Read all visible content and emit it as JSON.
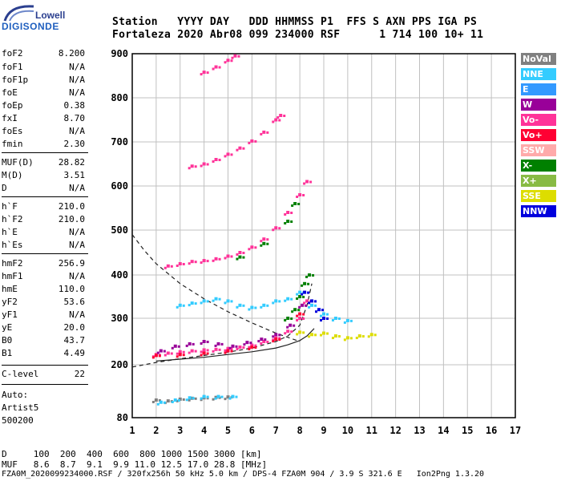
{
  "logo": {
    "line1": "Lowell",
    "line2": "DIGISONDE"
  },
  "header": {
    "row1": "Station   YYYY DAY   DDD HHMMSS P1  FFS S AXN PPS IGA PS",
    "row2": "Fortaleza 2020 Abr08 099 234000 RSF      1 714 100 10+ 11"
  },
  "params": [
    {
      "label": "foF2",
      "value": "8.200"
    },
    {
      "label": "foF1",
      "value": "N/A"
    },
    {
      "label": "foF1p",
      "value": "N/A"
    },
    {
      "label": "foE",
      "value": "N/A"
    },
    {
      "label": "foEp",
      "value": "0.38"
    },
    {
      "label": "fxI",
      "value": "8.70"
    },
    {
      "label": "foEs",
      "value": "N/A"
    },
    {
      "label": "fmin",
      "value": "2.30"
    },
    {
      "label": "MUF(D)",
      "value": "28.82"
    },
    {
      "label": "M(D)",
      "value": "3.51"
    },
    {
      "label": "D",
      "value": "N/A"
    },
    {
      "label": "h`F",
      "value": "210.0"
    },
    {
      "label": "h`F2",
      "value": "210.0"
    },
    {
      "label": "h`E",
      "value": "N/A"
    },
    {
      "label": "h`Es",
      "value": "N/A"
    },
    {
      "label": "hmF2",
      "value": "256.9"
    },
    {
      "label": "hmF1",
      "value": "N/A"
    },
    {
      "label": "hmE",
      "value": "110.0"
    },
    {
      "label": "yF2",
      "value": "53.6"
    },
    {
      "label": "yF1",
      "value": "N/A"
    },
    {
      "label": "yE",
      "value": "20.0"
    },
    {
      "label": "B0",
      "value": "43.7"
    },
    {
      "label": "B1",
      "value": "4.49"
    },
    {
      "label": "C-level",
      "value": "22"
    }
  ],
  "auto": {
    "line1": "Auto:",
    "line2": "Artist5",
    "line3": "500200"
  },
  "legend": [
    {
      "label": "NoVal",
      "color": "#808080"
    },
    {
      "label": "NNE",
      "color": "#33ccff"
    },
    {
      "label": "E",
      "color": "#3399ff"
    },
    {
      "label": "W",
      "color": "#990099"
    },
    {
      "label": "Vo-",
      "color": "#ff3399"
    },
    {
      "label": "Vo+",
      "color": "#ff0033"
    },
    {
      "label": "SSW",
      "color": "#ffaaaa"
    },
    {
      "label": "X-",
      "color": "#008000"
    },
    {
      "label": "X+",
      "color": "#88bb44"
    },
    {
      "label": "SSE",
      "color": "#dddd00"
    },
    {
      "label": "NNW",
      "color": "#0000dd"
    }
  ],
  "bottom": {
    "row1": "D     100  200  400  600  800 1000 1500 3000 [km]",
    "row2": "MUF   8.6  8.7  9.1  9.9 11.0 12.5 17.0 28.8 [MHz]",
    "row3": "FZA0M_2020099234000.RSF / 320fx256h 50 kHz 5.0 km / DPS-4 FZA0M 904 / 3.9 S 321.6 E   Ion2Png 1.3.20"
  },
  "chart_data": {
    "type": "scatter",
    "title": "",
    "xlabel": "",
    "ylabel": "",
    "xlim": [
      1,
      17
    ],
    "ylim": [
      80,
      900
    ],
    "x_ticks": [
      "1",
      "2",
      "3",
      "4",
      "5",
      "6",
      "7",
      "8",
      "9",
      "10",
      "11",
      "12",
      "13",
      "14",
      "15",
      "16",
      "17"
    ],
    "y_ticks": [
      "80",
      "200",
      "300",
      "400",
      "500",
      "600",
      "700",
      "800",
      "900"
    ],
    "series": [
      {
        "color": "#ff3399",
        "points": [
          [
            2.0,
            222
          ],
          [
            2.5,
            225
          ],
          [
            3.0,
            228
          ],
          [
            3.5,
            230
          ],
          [
            4.0,
            232
          ],
          [
            4.5,
            233
          ],
          [
            5.0,
            235
          ],
          [
            5.5,
            238
          ],
          [
            6.0,
            242
          ],
          [
            6.5,
            250
          ],
          [
            7.0,
            258
          ],
          [
            7.5,
            272
          ],
          [
            8.0,
            300
          ],
          [
            8.3,
            340
          ]
        ]
      },
      {
        "color": "#990099",
        "points": [
          [
            2.2,
            230
          ],
          [
            2.8,
            240
          ],
          [
            3.4,
            245
          ],
          [
            4.0,
            250
          ],
          [
            4.6,
            245
          ],
          [
            5.2,
            240
          ],
          [
            5.8,
            248
          ],
          [
            6.4,
            255
          ],
          [
            7.0,
            265
          ],
          [
            7.6,
            285
          ],
          [
            8.1,
            330
          ]
        ]
      },
      {
        "color": "#ff0033",
        "points": [
          [
            2.0,
            220
          ],
          [
            3.0,
            222
          ],
          [
            4.0,
            225
          ],
          [
            5.0,
            230
          ],
          [
            6.0,
            238
          ],
          [
            7.0,
            255
          ],
          [
            8.0,
            310
          ]
        ]
      },
      {
        "color": "#ff3399",
        "points": [
          [
            2.5,
            420
          ],
          [
            3.0,
            425
          ],
          [
            3.5,
            430
          ],
          [
            4.0,
            432
          ],
          [
            4.5,
            436
          ],
          [
            5.0,
            442
          ],
          [
            5.5,
            450
          ],
          [
            6.0,
            462
          ],
          [
            6.5,
            480
          ],
          [
            7.0,
            505
          ],
          [
            7.5,
            540
          ],
          [
            8.0,
            580
          ],
          [
            8.3,
            610
          ]
        ]
      },
      {
        "color": "#ff3399",
        "points": [
          [
            3.5,
            645
          ],
          [
            4.0,
            650
          ],
          [
            4.5,
            660
          ],
          [
            5.0,
            672
          ],
          [
            5.5,
            686
          ],
          [
            6.0,
            702
          ],
          [
            6.5,
            722
          ],
          [
            7.0,
            750
          ],
          [
            7.2,
            760
          ]
        ]
      },
      {
        "color": "#ff3399",
        "points": [
          [
            4.0,
            858
          ],
          [
            4.5,
            870
          ],
          [
            5.0,
            885
          ],
          [
            5.3,
            895
          ]
        ]
      },
      {
        "color": "#33ccff",
        "points": [
          [
            3.0,
            330
          ],
          [
            3.5,
            335
          ],
          [
            4.0,
            340
          ],
          [
            4.5,
            345
          ],
          [
            5.0,
            340
          ],
          [
            5.5,
            330
          ],
          [
            6.0,
            325
          ],
          [
            6.5,
            330
          ],
          [
            7.0,
            340
          ],
          [
            7.5,
            345
          ],
          [
            8.0,
            360
          ],
          [
            8.5,
            330
          ],
          [
            9.0,
            310
          ],
          [
            9.5,
            300
          ],
          [
            10.0,
            295
          ]
        ]
      },
      {
        "color": "#dddd00",
        "points": [
          [
            8.0,
            270
          ],
          [
            8.5,
            265
          ],
          [
            9.0,
            268
          ],
          [
            9.5,
            262
          ],
          [
            10.0,
            258
          ],
          [
            10.5,
            262
          ],
          [
            11.0,
            265
          ]
        ]
      },
      {
        "color": "#0000dd",
        "points": [
          [
            8.2,
            360
          ],
          [
            8.5,
            340
          ],
          [
            8.8,
            320
          ],
          [
            9.0,
            300
          ]
        ]
      },
      {
        "color": "#008000",
        "points": [
          [
            7.5,
            300
          ],
          [
            7.8,
            320
          ],
          [
            8.0,
            350
          ],
          [
            8.2,
            380
          ],
          [
            8.4,
            400
          ],
          [
            5.5,
            440
          ],
          [
            6.5,
            470
          ],
          [
            7.5,
            520
          ],
          [
            7.8,
            560
          ]
        ]
      },
      {
        "color": "#808080",
        "points": [
          [
            2.0,
            120
          ],
          [
            2.5,
            118
          ],
          [
            3.0,
            122
          ],
          [
            3.5,
            124
          ],
          [
            4.0,
            125
          ],
          [
            4.5,
            126
          ],
          [
            5.0,
            127
          ]
        ]
      },
      {
        "color": "#33ccff",
        "points": [
          [
            2.2,
            115
          ],
          [
            2.8,
            120
          ],
          [
            3.4,
            125
          ],
          [
            4.0,
            128
          ],
          [
            4.6,
            128
          ],
          [
            5.2,
            128
          ]
        ]
      }
    ],
    "curves": [
      {
        "style": "dashed",
        "points": [
          [
            1.0,
            490
          ],
          [
            1.5,
            455
          ],
          [
            2.0,
            425
          ],
          [
            3.0,
            380
          ],
          [
            4.0,
            345
          ],
          [
            5.0,
            315
          ],
          [
            6.0,
            290
          ],
          [
            7.0,
            268
          ],
          [
            8.0,
            250
          ]
        ]
      },
      {
        "style": "dashed",
        "points": [
          [
            1.0,
            195
          ],
          [
            2.0,
            205
          ],
          [
            3.0,
            213
          ],
          [
            4.0,
            220
          ],
          [
            5.0,
            227
          ],
          [
            6.0,
            236
          ],
          [
            7.0,
            250
          ],
          [
            7.5,
            262
          ],
          [
            8.0,
            285
          ],
          [
            8.3,
            330
          ],
          [
            8.5,
            380
          ]
        ]
      },
      {
        "style": "solid",
        "points": [
          [
            2.0,
            208
          ],
          [
            3.0,
            212
          ],
          [
            4.0,
            216
          ],
          [
            5.0,
            222
          ],
          [
            6.0,
            228
          ],
          [
            7.0,
            236
          ],
          [
            7.5,
            243
          ],
          [
            8.0,
            252
          ],
          [
            8.3,
            262
          ],
          [
            8.6,
            278
          ]
        ]
      }
    ]
  }
}
